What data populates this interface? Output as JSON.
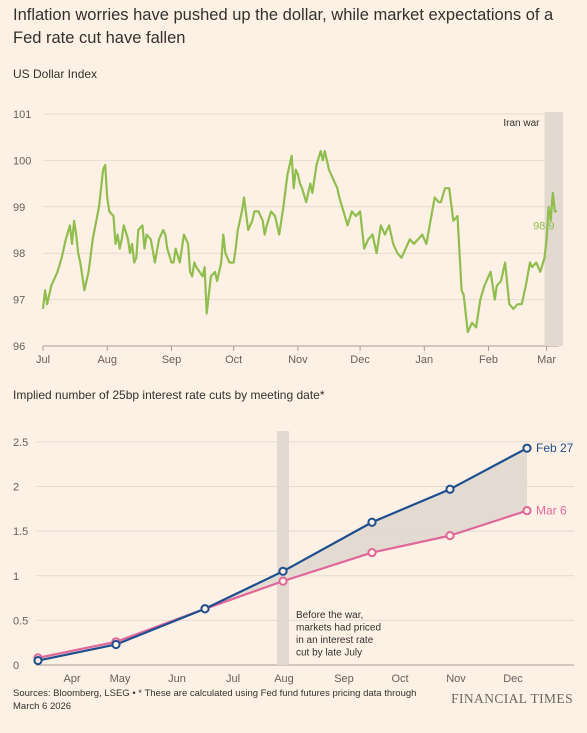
{
  "title": "Inflation worries have pushed up the dollar, while market expectations of a Fed rate cut have fallen",
  "footer": {
    "source": "Sources: Bloomberg, LSEG • * These are calculated using Fed fund futures pricing data through March 6 2026",
    "brand": "FINANCIAL TIMES"
  },
  "colors": {
    "background": "#fdf1e5",
    "dollar_line": "#8fbe4f",
    "feb27": "#1d4e8f",
    "mar6": "#e0679a",
    "shade": "#e2d9d0",
    "grid": "#e6dbd0"
  },
  "chart_data": [
    {
      "type": "line",
      "title": "US Dollar Index",
      "ylim": [
        96,
        101
      ],
      "yticks": [
        96,
        97,
        98,
        99,
        100,
        101
      ],
      "xticks": [
        "Jul",
        "Aug",
        "Sep",
        "Oct",
        "Nov",
        "Dec",
        "Jan",
        "Feb",
        "Mar"
      ],
      "x_range": [
        "2025-07-01",
        "2026-03-07"
      ],
      "annotation": "Iran war",
      "shaded_period": [
        "2026-02-28",
        "2026-03-06"
      ],
      "end_label": "98.9",
      "series": [
        {
          "x": [
            "2025-07-01",
            "2025-07-02",
            "2025-07-03",
            "2025-07-05",
            "2025-07-08",
            "2025-07-10",
            "2025-07-12",
            "2025-07-14",
            "2025-07-15",
            "2025-07-16",
            "2025-07-17",
            "2025-07-18",
            "2025-07-19",
            "2025-07-21",
            "2025-07-23",
            "2025-07-25",
            "2025-07-28",
            "2025-07-30",
            "2025-07-31",
            "2025-08-01",
            "2025-08-02",
            "2025-08-04",
            "2025-08-05",
            "2025-08-06",
            "2025-08-07",
            "2025-08-08",
            "2025-08-09",
            "2025-08-11",
            "2025-08-12",
            "2025-08-13",
            "2025-08-14",
            "2025-08-15",
            "2025-08-16",
            "2025-08-18",
            "2025-08-19",
            "2025-08-20",
            "2025-08-22",
            "2025-08-24",
            "2025-08-26",
            "2025-08-28",
            "2025-08-29",
            "2025-08-30",
            "2025-09-01",
            "2025-09-02",
            "2025-09-03",
            "2025-09-05",
            "2025-09-07",
            "2025-09-09",
            "2025-09-10",
            "2025-09-11",
            "2025-09-12",
            "2025-09-13",
            "2025-09-16",
            "2025-09-17",
            "2025-09-18",
            "2025-09-20",
            "2025-09-22",
            "2025-09-23",
            "2025-09-25",
            "2025-09-26",
            "2025-09-27",
            "2025-09-29",
            "2025-10-01",
            "2025-10-02",
            "2025-10-03",
            "2025-10-05",
            "2025-10-06",
            "2025-10-08",
            "2025-10-10",
            "2025-10-11",
            "2025-10-13",
            "2025-10-15",
            "2025-10-16",
            "2025-10-17",
            "2025-10-19",
            "2025-10-21",
            "2025-10-23",
            "2025-10-25",
            "2025-10-27",
            "2025-10-29",
            "2025-10-30",
            "2025-10-31",
            "2025-11-01",
            "2025-11-02",
            "2025-11-03",
            "2025-11-05",
            "2025-11-07",
            "2025-11-08",
            "2025-11-10",
            "2025-11-12",
            "2025-11-13",
            "2025-11-14",
            "2025-11-16",
            "2025-11-18",
            "2025-11-20",
            "2025-11-21",
            "2025-11-23",
            "2025-11-25",
            "2025-11-27",
            "2025-11-29",
            "2025-12-01",
            "2025-12-03",
            "2025-12-05",
            "2025-12-07",
            "2025-12-09",
            "2025-12-11",
            "2025-12-13",
            "2025-12-15",
            "2025-12-17",
            "2025-12-19",
            "2025-12-21",
            "2025-12-23",
            "2025-12-25",
            "2025-12-27",
            "2025-12-29",
            "2025-12-31",
            "2026-01-02",
            "2026-01-04",
            "2026-01-06",
            "2026-01-08",
            "2026-01-09",
            "2026-01-11",
            "2026-01-13",
            "2026-01-15",
            "2026-01-17",
            "2026-01-19",
            "2026-01-20",
            "2026-01-22",
            "2026-01-24",
            "2026-01-26",
            "2026-01-28",
            "2026-01-30",
            "2026-02-01",
            "2026-02-02",
            "2026-02-04",
            "2026-02-05",
            "2026-02-07",
            "2026-02-09",
            "2026-02-11",
            "2026-02-13",
            "2026-02-15",
            "2026-02-17",
            "2026-02-19",
            "2026-02-21",
            "2026-02-22",
            "2026-02-24",
            "2026-02-26",
            "2026-02-28",
            "2026-03-01",
            "2026-03-02",
            "2026-03-03",
            "2026-03-04",
            "2026-03-05",
            "2026-03-06"
          ],
          "values": [
            96.8,
            97.2,
            96.9,
            97.3,
            97.6,
            97.9,
            98.3,
            98.6,
            98.2,
            98.7,
            98.4,
            98.0,
            97.8,
            97.2,
            97.6,
            98.3,
            99.0,
            99.8,
            99.9,
            99.2,
            98.9,
            98.8,
            98.2,
            98.4,
            98.1,
            98.3,
            98.6,
            98.3,
            98.0,
            98.2,
            97.8,
            97.9,
            98.5,
            98.6,
            98.1,
            98.4,
            98.3,
            97.8,
            98.3,
            98.5,
            98.4,
            98.1,
            97.8,
            97.8,
            98.1,
            97.8,
            98.4,
            98.2,
            97.6,
            97.5,
            97.8,
            97.7,
            97.5,
            97.7,
            96.7,
            97.5,
            97.6,
            97.4,
            97.8,
            98.4,
            98.0,
            97.8,
            97.8,
            98.1,
            98.5,
            98.9,
            99.2,
            98.5,
            98.7,
            98.9,
            98.9,
            98.7,
            98.4,
            98.6,
            98.9,
            98.8,
            98.4,
            99.0,
            99.7,
            100.1,
            99.4,
            99.8,
            99.7,
            99.5,
            99.4,
            99.1,
            99.5,
            99.3,
            99.9,
            100.2,
            100.0,
            100.2,
            99.8,
            99.6,
            99.4,
            99.2,
            98.9,
            98.6,
            98.9,
            98.8,
            98.9,
            98.1,
            98.3,
            98.4,
            98.0,
            98.6,
            98.4,
            98.6,
            98.2,
            98.0,
            97.9,
            98.1,
            98.3,
            98.2,
            98.3,
            98.4,
            98.2,
            98.7,
            99.2,
            99.1,
            99.1,
            99.4,
            99.4,
            98.7,
            98.8,
            97.2,
            97.1,
            96.3,
            96.5,
            96.4,
            97.0,
            97.3,
            97.5,
            97.6,
            97.0,
            97.3,
            97.4,
            97.8,
            96.9,
            96.8,
            96.9,
            96.9,
            97.3,
            97.8,
            97.7,
            97.8,
            97.6,
            97.9,
            98.3,
            99.0,
            98.7,
            99.3,
            98.9,
            98.9
          ]
        }
      ]
    },
    {
      "type": "line",
      "title": "Implied number of 25bp interest rate cuts by meeting date*",
      "ylim": [
        0,
        2.6
      ],
      "yticks": [
        0,
        0.5,
        1,
        1.5,
        2,
        2.5
      ],
      "ytick_labels": [
        "0",
        "0.5",
        "1",
        "1.5",
        "2",
        "2.5"
      ],
      "xticks": [
        "Apr",
        "May",
        "Jun",
        "Jul",
        "Aug",
        "Sep",
        "Oct",
        "Nov",
        "Dec"
      ],
      "annotation": "Before the war, markets had priced in an interest rate cut by late July",
      "shaded_meeting": "Jul",
      "series": [
        {
          "name": "Feb 27",
          "x": [
            "Mar",
            "Apr",
            "Jun",
            "Jul",
            "Sep",
            "Oct",
            "Dec"
          ],
          "values": [
            0.05,
            0.23,
            0.63,
            1.05,
            1.6,
            1.97,
            2.43
          ]
        },
        {
          "name": "Mar 6",
          "x": [
            "Mar",
            "Apr",
            "Jun",
            "Jul",
            "Sep",
            "Oct",
            "Dec"
          ],
          "values": [
            0.08,
            0.26,
            0.63,
            0.94,
            1.26,
            1.45,
            1.73
          ]
        }
      ]
    }
  ]
}
